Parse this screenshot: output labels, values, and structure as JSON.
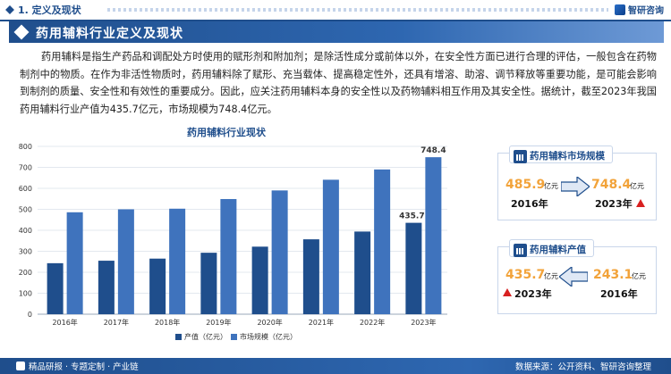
{
  "header": {
    "section_title": "1. 定义及现状",
    "logo_text": "智研咨询"
  },
  "banner": {
    "title": "药用辅料行业定义及现状"
  },
  "paragraph": "药用辅料是指生产药品和调配处方时使用的赋形剂和附加剂；是除活性成分或前体以外，在安全性方面已进行合理的评估，一般包含在药物制剂中的物质。在作为非活性物质时，药用辅料除了赋形、充当载体、提高稳定性外，还具有增溶、助溶、调节释放等重要功能，是可能会影响到制剂的质量、安全性和有效性的重要成分。因此，应关注药用辅料本身的安全性以及药物辅料相互作用及其安全性。据统计，截至2023年我国药用辅料行业产值为435.7亿元，市场规模为748.4亿元。",
  "chart_data": {
    "type": "bar",
    "title": "药用辅料行业现状",
    "categories": [
      "2016年",
      "2017年",
      "2018年",
      "2019年",
      "2020年",
      "2021年",
      "2022年",
      "2023年"
    ],
    "series": [
      {
        "name": "产值（亿元）",
        "color": "#1f4e8c",
        "values": [
          243.1,
          255,
          265,
          293,
          322,
          357,
          394,
          435.7
        ]
      },
      {
        "name": "市场规模（亿元）",
        "color": "#3f73bd",
        "values": [
          485.9,
          500,
          503,
          549,
          590,
          641,
          690,
          748.4
        ]
      }
    ],
    "data_labels": {
      "产值": "435.7",
      "市场规模": "748.4"
    },
    "y_ticks": [
      "0",
      "100",
      "200",
      "300",
      "400",
      "500",
      "600",
      "700",
      "800"
    ],
    "ylim": [
      0,
      800
    ],
    "grid": true,
    "legend_position": "bottom"
  },
  "card_market": {
    "title": "药用辅料市场规模",
    "left_value": "485.9",
    "left_unit": "亿元",
    "left_year": "2016年",
    "right_value": "748.4",
    "right_unit": "亿元",
    "right_year": "2023年"
  },
  "card_output": {
    "title": "药用辅料产值",
    "left_value": "435.7",
    "left_unit": "亿元",
    "left_year": "2023年",
    "right_value": "243.1",
    "right_unit": "亿元",
    "right_year": "2016年"
  },
  "watermark": "智研咨询",
  "footer": {
    "left": "精品研报 · 专题定制 · 产业链",
    "right": "数据来源：公开资料、智研咨询整理"
  }
}
